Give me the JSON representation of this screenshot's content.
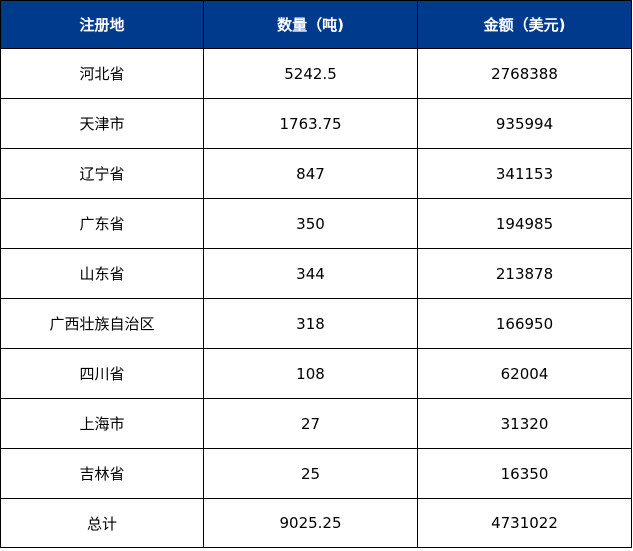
{
  "table": {
    "headers": [
      "注册地",
      "数量（吨)",
      "金额（美元)"
    ],
    "rows": [
      [
        "河北省",
        "5242.5",
        "2768388"
      ],
      [
        "天津市",
        "1763.75",
        "935994"
      ],
      [
        "辽宁省",
        "847",
        "341153"
      ],
      [
        "广东省",
        "350",
        "194985"
      ],
      [
        "山东省",
        "344",
        "213878"
      ],
      [
        "广西壮族自治区",
        "318",
        "166950"
      ],
      [
        "四川省",
        "108",
        "62004"
      ],
      [
        "上海市",
        "27",
        "31320"
      ],
      [
        "吉林省",
        "25",
        "16350"
      ],
      [
        "总计",
        "9025.25",
        "4731022"
      ]
    ]
  },
  "colors": {
    "header_background": "#003a8c",
    "header_text": "#ffffff",
    "border": "#000000"
  }
}
